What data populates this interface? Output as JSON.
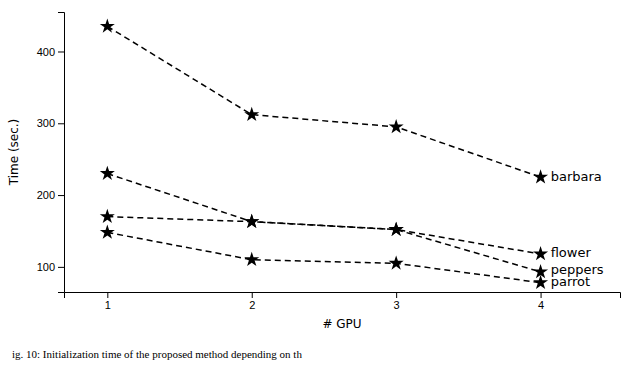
{
  "chart_data": {
    "type": "line",
    "x": [
      1,
      2,
      3,
      4
    ],
    "series": [
      {
        "name": "barbara",
        "values": [
          435,
          312,
          295,
          225
        ]
      },
      {
        "name": "flower",
        "values": [
          230,
          163,
          152,
          118
        ]
      },
      {
        "name": "peppers",
        "values": [
          170,
          163,
          152,
          93
        ]
      },
      {
        "name": "parrot",
        "values": [
          148,
          110,
          105,
          78
        ]
      }
    ],
    "color": "black",
    "line_style": "dashed",
    "marker": "star",
    "xlabel": "# GPU",
    "ylabel": "Time (sec.)",
    "xlim": [
      0.7,
      4.55
    ],
    "ylim": [
      65,
      455
    ],
    "xticks": [
      1,
      2,
      3,
      4
    ],
    "yticks": [
      100,
      200,
      300,
      400
    ],
    "annotations": [
      {
        "text": "barbara",
        "x": 4.07,
        "y": 225
      },
      {
        "text": "flower",
        "x": 4.07,
        "y": 118
      },
      {
        "text": "peppers",
        "x": 4.07,
        "y": 95
      },
      {
        "text": "parrot",
        "x": 4.07,
        "y": 78
      }
    ],
    "caption": "ig. 10: Initialization time of the proposed method depending on th"
  }
}
